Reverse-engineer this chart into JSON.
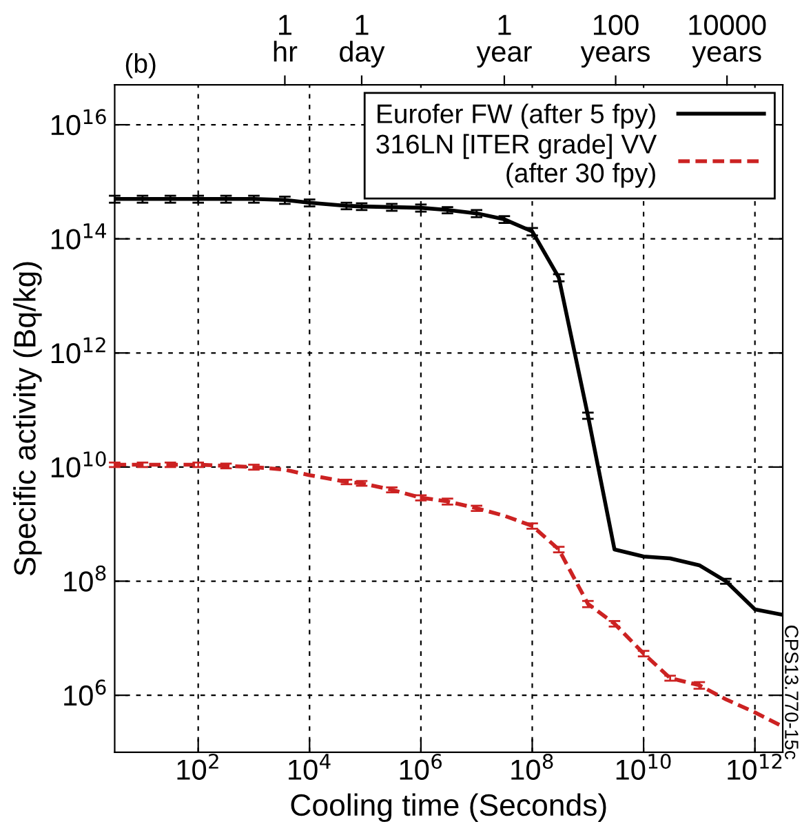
{
  "chart_data": {
    "type": "line",
    "xlabel": "Cooling time (Seconds)",
    "ylabel": "Specific activity (Bq/kg)",
    "log": "xy",
    "xlim": [
      3.16,
      3160000000000.0
    ],
    "ylim": [
      100000.0,
      5e+16
    ],
    "xticks": [
      {
        "value": 100.0,
        "label": "10$^{2}$"
      },
      {
        "value": 10000.0,
        "label": "10$^{4}$"
      },
      {
        "value": 1000000.0,
        "label": "10$^{6}$"
      },
      {
        "value": 100000000.0,
        "label": "10$^{8}$"
      },
      {
        "value": 10000000000.0,
        "label": "10$^{10}$"
      },
      {
        "value": 1000000000000.0,
        "label": "10$^{12}$"
      }
    ],
    "yticks": [
      {
        "value": 1000000.0,
        "label": "10$^{6}$"
      },
      {
        "value": 100000000.0,
        "label": "10$^{8}$"
      },
      {
        "value": 10000000000.0,
        "label": "10$^{10}$"
      },
      {
        "value": 1000000000000.0,
        "label": "10$^{12}$"
      },
      {
        "value": 100000000000000.0,
        "label": "10$^{14}$"
      },
      {
        "value": 1e+16,
        "label": "10$^{16}$"
      }
    ],
    "x": [
      3.16,
      10,
      31.6,
      100,
      316,
      1000,
      3600,
      10000.0,
      46000.0,
      86400,
      300000.0,
      1000000.0,
      3000000.0,
      10000000.0,
      31500000.0,
      100000000.0,
      300000000.0,
      1000000000.0,
      3000000000.0,
      10000000000.0,
      30000000000.0,
      100000000000.0,
      300000000000.0,
      1000000000000.0,
      3000000000000.0
    ],
    "series": [
      {
        "name": "Eurofer FW (after 5 fpy)",
        "color": "#000000",
        "line_style": "solid",
        "values": [
          500000000000000.0,
          500000000000000.0,
          500000000000000.0,
          500000000000000.0,
          500000000000000.0,
          500000000000000.0,
          480000000000000.0,
          430000000000000.0,
          380000000000000.0,
          370000000000000.0,
          360000000000000.0,
          350000000000000.0,
          320000000000000.0,
          280000000000000.0,
          220000000000000.0,
          135000000000000.0,
          21000000000000.0,
          80000000000.0,
          360000000.0,
          270000000.0,
          250000000.0,
          190000000.0,
          100000000.0,
          32000000.0,
          26000000.0
        ],
        "errors": [
          70000000000000.0,
          70000000000000.0,
          70000000000000.0,
          70000000000000.0,
          70000000000000.0,
          70000000000000.0,
          70000000000000.0,
          60000000000000.0,
          50000000000000.0,
          50000000000000.0,
          50000000000000.0,
          50000000000000.0,
          40000000000000.0,
          40000000000000.0,
          30000000000000.0,
          20000000000000.0,
          3000000000000.0,
          10000000000.0,
          null,
          null,
          null,
          null,
          10000000.0,
          null,
          null
        ]
      },
      {
        "name": "316LN [ITER grade] VV\n(after 30 fpy)",
        "color": "#cc2222",
        "line_style": "dashed",
        "values": [
          11000000000.0,
          11000000000.0,
          11000000000.0,
          11000000000.0,
          10500000000.0,
          10000000000.0,
          9000000000.0,
          7200000000.0,
          5500000000.0,
          5200000000.0,
          4000000000.0,
          2900000000.0,
          2500000000.0,
          1900000000.0,
          1400000000.0,
          930000000.0,
          360000000.0,
          40000000.0,
          18000000.0,
          5400000.0,
          2000000.0,
          1500000.0,
          850000.0,
          500000.0,
          290000.0
        ],
        "errors": [
          1000000000.0,
          1000000000.0,
          1000000000.0,
          1000000000.0,
          1000000000.0,
          1000000000.0,
          null,
          null,
          500000000.0,
          500000000.0,
          400000000.0,
          300000000.0,
          300000000.0,
          200000000.0,
          null,
          100000000.0,
          40000000.0,
          5000000.0,
          2000000.0,
          600000.0,
          200000.0,
          200000.0,
          null,
          null,
          null
        ]
      }
    ],
    "grid": true,
    "legend": "top right",
    "annotations": [
      "(b)",
      "CPS13.770-15c",
      {
        "text": "1\nhr",
        "x": 3600
      },
      {
        "text": "1\nday",
        "x": 86400
      },
      {
        "text": "1\nyear",
        "x": 31500000.0
      },
      {
        "text": "100\nyears",
        "x": 3150000000.0
      },
      {
        "text": "10000\nyears",
        "x": 315000000000.0
      }
    ]
  }
}
